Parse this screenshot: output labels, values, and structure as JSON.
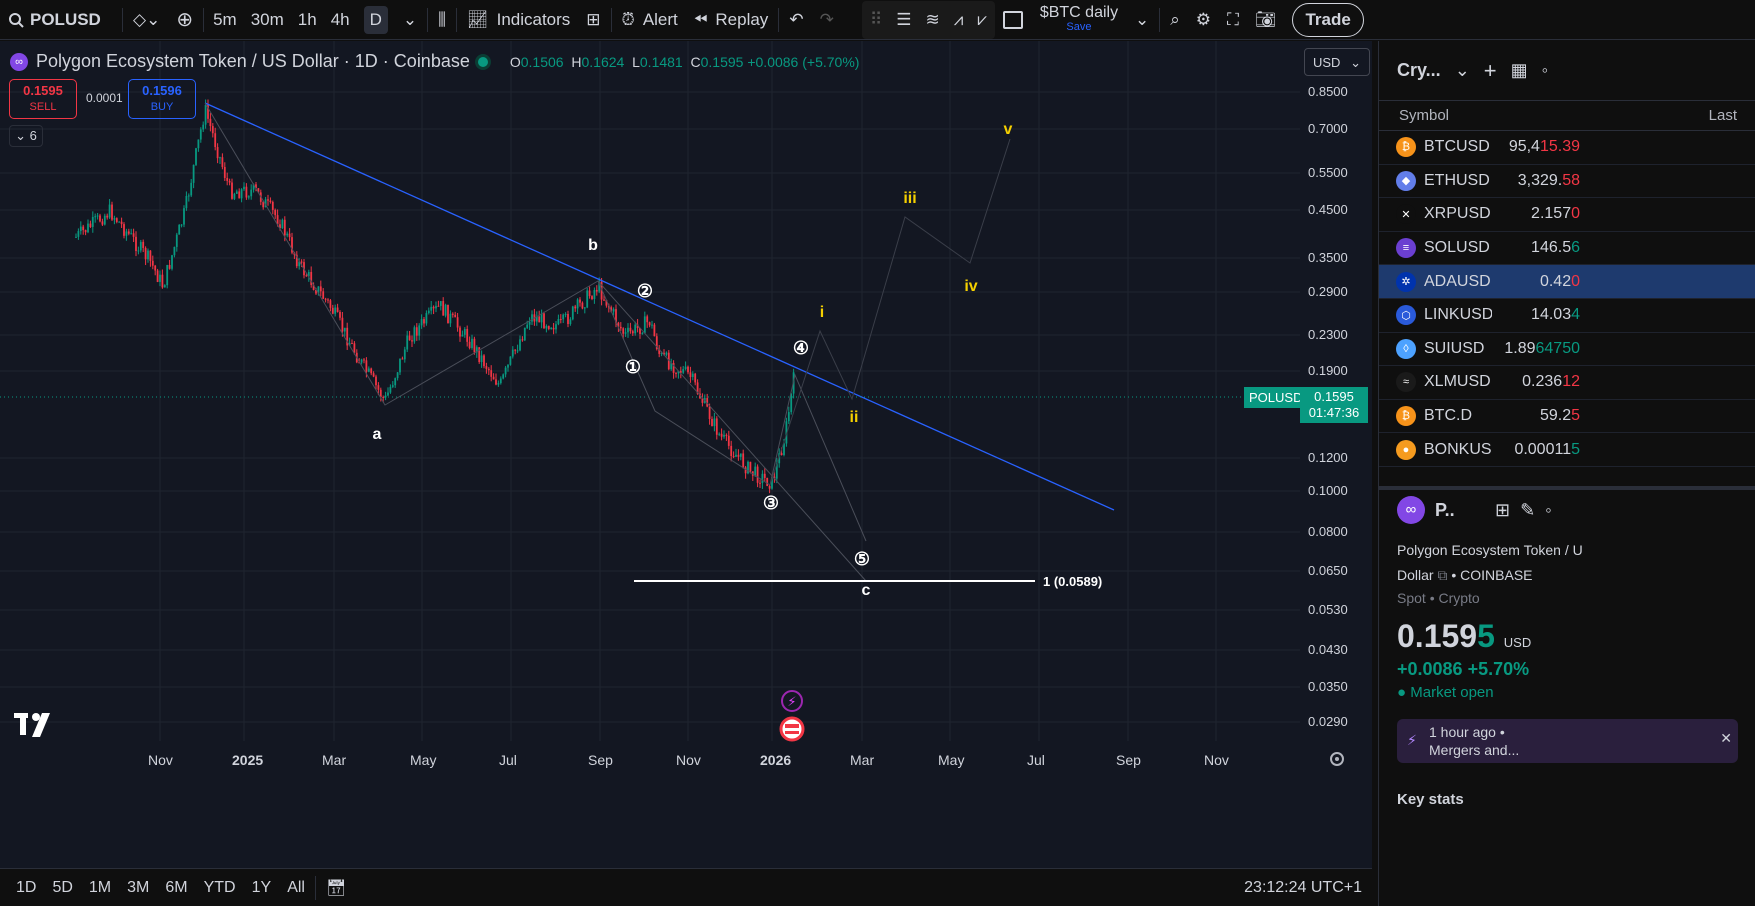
{
  "topbar": {
    "symbol": "POLUSD",
    "timeframes": [
      "5m",
      "30m",
      "1h",
      "4h",
      "D"
    ],
    "indicators": "Indicators",
    "alert": "Alert",
    "replay": "Replay",
    "layout_name": "$BTC daily",
    "layout_save": "Save",
    "trade": "Trade"
  },
  "legend": {
    "title": "Polygon Ecosystem Token / US Dollar · 1D · Coinbase",
    "o_label": "O",
    "o": "0.1506",
    "h_label": "H",
    "h": "0.1624",
    "l_label": "L",
    "l": "0.1481",
    "c_label": "C",
    "c": "0.1595",
    "change": "+0.0086 (+5.70%)"
  },
  "orderbox": {
    "sell_price": "0.1595",
    "sell_label": "SELL",
    "spread": "0.0001",
    "buy_price": "0.1596",
    "buy_label": "BUY",
    "collapse": "6"
  },
  "currency": "USD",
  "price_axis": [
    "0.8500",
    "0.7000",
    "0.5500",
    "0.4500",
    "0.3500",
    "0.2900",
    "0.2300",
    "0.1900",
    "0.1200",
    "0.1000",
    "0.0800",
    "0.0650",
    "0.0530",
    "0.0430",
    "0.0350",
    "0.0290"
  ],
  "time_axis": [
    "Nov",
    "2025",
    "Mar",
    "May",
    "Jul",
    "Sep",
    "Nov",
    "2026",
    "Mar",
    "May",
    "Jul",
    "Sep",
    "Nov"
  ],
  "current_price": {
    "label": "POLUSD",
    "price": "0.1595",
    "countdown": "01:47:36"
  },
  "waves": {
    "a": "a",
    "b": "b",
    "c": "c",
    "n1": "①",
    "n2": "②",
    "n3": "③",
    "n4": "④",
    "n5": "⑤",
    "i": "i",
    "ii": "ii",
    "iii": "iii",
    "iv": "iv",
    "v": "v"
  },
  "fib_label": "1 (0.0589)",
  "bottombar": {
    "ranges": [
      "1D",
      "5D",
      "1M",
      "3M",
      "6M",
      "YTD",
      "1Y",
      "All"
    ],
    "clock": "23:12:24 UTC+1"
  },
  "watchlist": {
    "title": "Cry...",
    "col_symbol": "Symbol",
    "col_last": "Last",
    "rows": [
      {
        "sym": "BTCUSD",
        "last_a": "95,4",
        "last_b": "15.39",
        "dir": "dn",
        "color": "#f7931a",
        "icon": "₿"
      },
      {
        "sym": "ETHUSD",
        "last_a": "3,329.",
        "last_b": "58",
        "dir": "dn",
        "color": "#627eea",
        "icon": "◆"
      },
      {
        "sym": "XRPUSD",
        "last_a": "2.157",
        "last_b": "0",
        "dir": "dn",
        "color": "#0f0f0f",
        "icon": "✕"
      },
      {
        "sym": "SOLUSD",
        "last_a": "146.5",
        "last_b": "6",
        "dir": "up",
        "color": "#6b3fd1",
        "icon": "≡"
      },
      {
        "sym": "ADAUSD",
        "last_a": "0.42",
        "last_b": "0",
        "dir": "dn",
        "color": "#0033ad",
        "icon": "✲"
      },
      {
        "sym": "LINKUSD",
        "last_a": "14.03",
        "last_b": "4",
        "dir": "up",
        "color": "#2a5ada",
        "icon": "⬡"
      },
      {
        "sym": "SUIUSD",
        "last_a": "1.89",
        "last_b": "64750",
        "dir": "up",
        "color": "#4da2ff",
        "icon": "◊"
      },
      {
        "sym": "XLMUSD",
        "last_a": "0.236",
        "last_b": "12",
        "dir": "dn",
        "color": "#1a1a1a",
        "icon": "≈"
      },
      {
        "sym": "BTC.D",
        "last_a": "59.2",
        "last_b": "5",
        "dir": "dn",
        "color": "#f7931a",
        "icon": "₿"
      },
      {
        "sym": "BONKUS",
        "last_a": "0.00011",
        "last_b": "5",
        "dir": "up",
        "color": "#f59b1f",
        "icon": "●"
      }
    ]
  },
  "details": {
    "short": "P..",
    "name_line1": "Polygon Ecosystem Token / U",
    "name_line2": "Dollar",
    "exchange": "• COINBASE",
    "type": "Spot • Crypto",
    "price_main": "0.159",
    "price_last": "5",
    "currency": "USD",
    "change": "+0.0086  +5.70%",
    "market": "Market open",
    "news_time": "1 hour ago •",
    "news_title": "Mergers and...",
    "key_stats": "Key stats"
  },
  "chart_data": {
    "type": "candlestick",
    "symbol": "POLUSD",
    "timeframe": "1D",
    "exchange": "Coinbase",
    "ohlc_last": {
      "open": 0.1506,
      "high": 0.1624,
      "low": 0.1481,
      "close": 0.1595
    },
    "y_scale": "log",
    "x": [
      "2024-11",
      "2024-12",
      "2025-01",
      "2025-02",
      "2025-03",
      "2025-04",
      "2025-05",
      "2025-06",
      "2025-07",
      "2025-08",
      "2025-09",
      "2025-10",
      "2025-11",
      "2025-12",
      "2026-01"
    ],
    "close": [
      0.4,
      0.62,
      0.45,
      0.3,
      0.23,
      0.19,
      0.24,
      0.21,
      0.24,
      0.26,
      0.28,
      0.22,
      0.17,
      0.12,
      0.1595
    ]
  }
}
